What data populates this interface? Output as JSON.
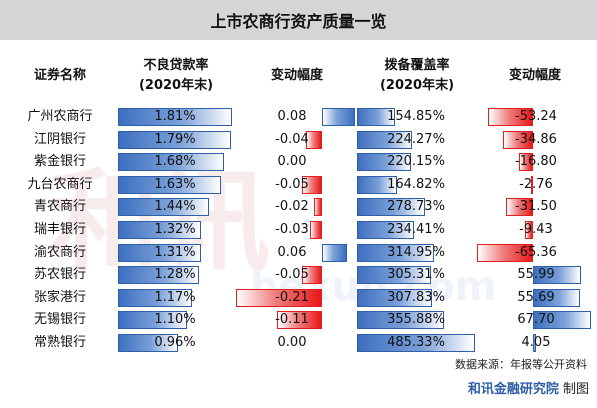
{
  "title": "上市农商行资产质量一览",
  "headers": {
    "name": "证券名称",
    "npl_line1": "不良贷款率",
    "npl_line2": "(2020年末)",
    "npl_change": "变动幅度",
    "cov_line1": "拨备覆盖率",
    "cov_line2": "(2020年末)",
    "cov_change": "变动幅度"
  },
  "chart_data": {
    "type": "table",
    "columns": [
      "证券名称",
      "不良贷款率(2020年末)",
      "变动幅度",
      "拨备覆盖率(2020年末)",
      "变动幅度"
    ],
    "rows": [
      {
        "name": "广州农商行",
        "npl": 1.81,
        "npl_label": "1.81%",
        "npl_chg": 0.08,
        "npl_chg_label": "0.08",
        "cov": 154.85,
        "cov_label": "154.85%",
        "cov_chg": -53.24,
        "cov_chg_label": "-53.24"
      },
      {
        "name": "江阴银行",
        "npl": 1.79,
        "npl_label": "1.79%",
        "npl_chg": -0.04,
        "npl_chg_label": "-0.04",
        "cov": 224.27,
        "cov_label": "224.27%",
        "cov_chg": -34.86,
        "cov_chg_label": "-34.86"
      },
      {
        "name": "紫金银行",
        "npl": 1.68,
        "npl_label": "1.68%",
        "npl_chg": 0.0,
        "npl_chg_label": "0.00",
        "cov": 220.15,
        "cov_label": "220.15%",
        "cov_chg": -16.8,
        "cov_chg_label": "-16.80"
      },
      {
        "name": "九台农商行",
        "npl": 1.63,
        "npl_label": "1.63%",
        "npl_chg": -0.05,
        "npl_chg_label": "-0.05",
        "cov": 164.82,
        "cov_label": "164.82%",
        "cov_chg": -2.76,
        "cov_chg_label": "-2.76"
      },
      {
        "name": "青农商行",
        "npl": 1.44,
        "npl_label": "1.44%",
        "npl_chg": -0.02,
        "npl_chg_label": "-0.02",
        "cov": 278.73,
        "cov_label": "278.73%",
        "cov_chg": -31.5,
        "cov_chg_label": "-31.50"
      },
      {
        "name": "瑞丰银行",
        "npl": 1.32,
        "npl_label": "1.32%",
        "npl_chg": -0.03,
        "npl_chg_label": "-0.03",
        "cov": 234.41,
        "cov_label": "234.41%",
        "cov_chg": -9.43,
        "cov_chg_label": "-9.43"
      },
      {
        "name": "渝农商行",
        "npl": 1.31,
        "npl_label": "1.31%",
        "npl_chg": 0.06,
        "npl_chg_label": "0.06",
        "cov": 314.95,
        "cov_label": "314.95%",
        "cov_chg": -65.36,
        "cov_chg_label": "-65.36"
      },
      {
        "name": "苏农银行",
        "npl": 1.28,
        "npl_label": "1.28%",
        "npl_chg": -0.05,
        "npl_chg_label": "-0.05",
        "cov": 305.31,
        "cov_label": "305.31%",
        "cov_chg": 55.99,
        "cov_chg_label": "55.99"
      },
      {
        "name": "张家港行",
        "npl": 1.17,
        "npl_label": "1.17%",
        "npl_chg": -0.21,
        "npl_chg_label": "-0.21",
        "cov": 307.83,
        "cov_label": "307.83%",
        "cov_chg": 55.69,
        "cov_chg_label": "55.69"
      },
      {
        "name": "无锡银行",
        "npl": 1.1,
        "npl_label": "1.10%",
        "npl_chg": -0.11,
        "npl_chg_label": "-0.11",
        "cov": 355.88,
        "cov_label": "355.88%",
        "cov_chg": 67.7,
        "cov_chg_label": "67.70"
      },
      {
        "name": "常熟银行",
        "npl": 0.96,
        "npl_label": "0.96%",
        "npl_chg": 0.0,
        "npl_chg_label": "0.00",
        "cov": 485.33,
        "cov_label": "485.33%",
        "cov_chg": 4.05,
        "cov_chg_label": "4.05"
      }
    ]
  },
  "footer": {
    "source": "数据来源：年报等公开资料",
    "org": "和讯金融研究院",
    "made": "制图"
  },
  "colors": {
    "blue": "#3e6fbf",
    "red": "#e81818",
    "title_bg": "#d5d5d5"
  },
  "watermark_text": "和讯 hexun.com"
}
